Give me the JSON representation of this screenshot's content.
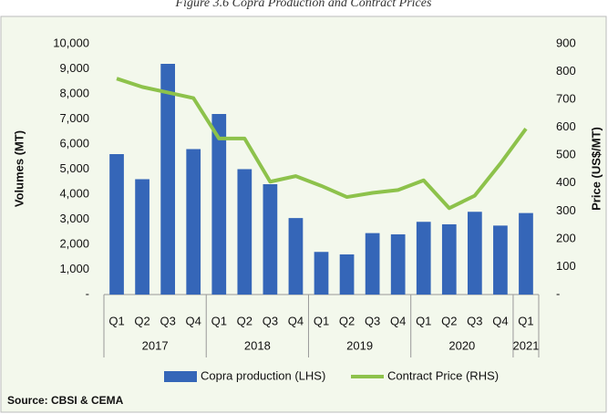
{
  "chart_data": {
    "type": "bar_line",
    "title": "Figure 3.6 Copra Production and Contract Prices",
    "categories": [
      "Q1",
      "Q2",
      "Q3",
      "Q4",
      "Q1",
      "Q2",
      "Q3",
      "Q4",
      "Q1",
      "Q2",
      "Q3",
      "Q4",
      "Q1",
      "Q2",
      "Q3",
      "Q4",
      "Q1"
    ],
    "x_groups": [
      {
        "label": "2017",
        "span": 4
      },
      {
        "label": "2018",
        "span": 4
      },
      {
        "label": "2019",
        "span": 4
      },
      {
        "label": "2020",
        "span": 4
      },
      {
        "label": "2021",
        "span": 1
      }
    ],
    "series": [
      {
        "name": "Copra production (LHS)",
        "type": "bar",
        "color": "#3566b8",
        "values": [
          5600,
          4600,
          9200,
          5800,
          7200,
          5000,
          4400,
          3050,
          1700,
          1600,
          2450,
          2400,
          2900,
          2800,
          3300,
          2750,
          3250
        ]
      },
      {
        "name": "Contract Price (RHS)",
        "type": "line",
        "axis": "y2",
        "color": "#8dc24b",
        "values": [
          775,
          745,
          725,
          705,
          560,
          560,
          405,
          425,
          390,
          350,
          365,
          375,
          410,
          310,
          355,
          470,
          595
        ]
      }
    ],
    "ylabel": "Volumes (MT)",
    "y2label": "Price (US$/MT)",
    "ylim": [
      0,
      10000
    ],
    "yticks": [
      {
        "value": 0,
        "label": "-"
      },
      {
        "value": 1000,
        "label": "1,000"
      },
      {
        "value": 2000,
        "label": "2,000"
      },
      {
        "value": 3000,
        "label": "3,000"
      },
      {
        "value": 4000,
        "label": "4,000"
      },
      {
        "value": 5000,
        "label": "5,000"
      },
      {
        "value": 6000,
        "label": "6,000"
      },
      {
        "value": 7000,
        "label": "7,000"
      },
      {
        "value": 8000,
        "label": "8,000"
      },
      {
        "value": 9000,
        "label": "9,000"
      },
      {
        "value": 10000,
        "label": "10,000"
      }
    ],
    "y2lim": [
      0,
      900
    ],
    "y2ticks": [
      {
        "value": 0,
        "label": "-"
      },
      100,
      200,
      300,
      400,
      500,
      600,
      700,
      800,
      900
    ],
    "grid": false,
    "legend": "bottom",
    "source": "Source: CBSI & CEMA"
  }
}
